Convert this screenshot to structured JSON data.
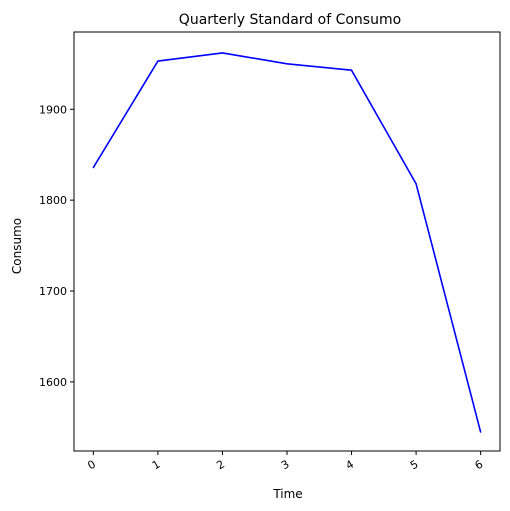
{
  "chart_data": {
    "type": "line",
    "title": "Quarterly Standard of Consumo",
    "xlabel": "Time",
    "ylabel": "Consumo",
    "x": [
      0,
      1,
      2,
      3,
      4,
      5,
      6
    ],
    "x_tick_labels": [
      "0",
      "1",
      "2",
      "3",
      "4",
      "5",
      "6"
    ],
    "y_ticks": [
      1600,
      1700,
      1800,
      1900
    ],
    "y_tick_labels": [
      "1600",
      "1700",
      "1800",
      "1900"
    ],
    "xlim": [
      -0.3,
      6.3
    ],
    "ylim": [
      1524,
      1985
    ],
    "grid": false,
    "series": [
      {
        "color": "#0000ff",
        "values": [
          1836,
          1953,
          1962,
          1950,
          1943,
          1818,
          1545
        ]
      }
    ]
  }
}
